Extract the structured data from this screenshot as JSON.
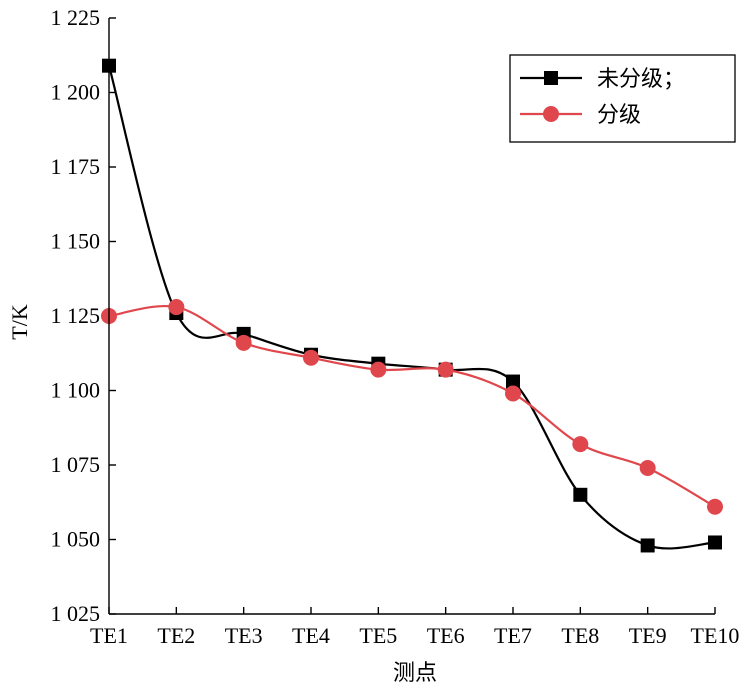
{
  "chart_data": {
    "type": "line",
    "categories": [
      "TE1",
      "TE2",
      "TE3",
      "TE4",
      "TE5",
      "TE6",
      "TE7",
      "TE8",
      "TE9",
      "TE10"
    ],
    "series": [
      {
        "name": "未分级；",
        "color": "#000000",
        "marker": "square",
        "values": [
          1209,
          1126,
          1119,
          1112,
          1109,
          1107,
          1103,
          1065,
          1048,
          1049
        ]
      },
      {
        "name": "分级",
        "color": "#e0474c",
        "marker": "circle",
        "values": [
          1125,
          1128,
          1116,
          1111,
          1107,
          1107,
          1099,
          1082,
          1074,
          1061
        ]
      }
    ],
    "xlabel": "测点",
    "ylabel": "T/K",
    "ylim": [
      1025,
      1225
    ],
    "yticks": [
      1025,
      1050,
      1075,
      1100,
      1125,
      1150,
      1175,
      1200,
      1225
    ],
    "ytick_labels": [
      "1 025",
      "1 050",
      "1 075",
      "1 100",
      "1 125",
      "1 150",
      "1 175",
      "1 200",
      "1 225"
    ],
    "grid": false,
    "legend": "top-right"
  }
}
